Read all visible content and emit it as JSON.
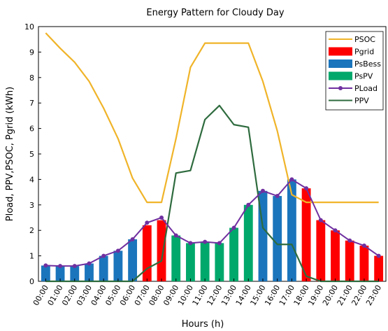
{
  "chart_data": {
    "type": "bar",
    "title": "Energy Pattern for Cloudy Day",
    "xlabel": "Hours (h)",
    "ylabel": "Pload, PPV,PSOC, Pgrid (kWh)",
    "ylim": [
      0,
      10
    ],
    "yticks": [
      "0",
      "1",
      "2",
      "3",
      "4",
      "5",
      "6",
      "7",
      "8",
      "9",
      "10"
    ],
    "grid": false,
    "legend_position": "top-right",
    "categories": [
      "00:00",
      "01:00",
      "02:00",
      "03:00",
      "04:00",
      "05:00",
      "06:00",
      "07:00",
      "08:00",
      "09:00",
      "10:00",
      "11:00",
      "12:00",
      "13:00",
      "14:00",
      "15:00",
      "16:00",
      "17:00",
      "18:00",
      "19:00",
      "20:00",
      "21:00",
      "22:00",
      "23:00"
    ],
    "series": [
      {
        "name": "PSOC",
        "kind": "line",
        "color": "#f0b429",
        "values": [
          9.75,
          9.15,
          8.6,
          7.85,
          6.8,
          5.6,
          4.05,
          3.1,
          3.1,
          5.6,
          8.4,
          9.35,
          9.35,
          9.35,
          9.35,
          7.85,
          5.9,
          3.4,
          3.1,
          3.1,
          3.1,
          3.1,
          3.1,
          3.1
        ]
      },
      {
        "name": "Pgrid",
        "kind": "bar",
        "color": "#ff0000",
        "values": [
          0,
          0,
          0,
          0,
          0,
          0,
          0,
          2.2,
          2.4,
          0,
          0,
          0,
          0,
          0,
          0,
          0,
          0,
          0,
          3.65,
          2.4,
          2.0,
          1.6,
          1.4,
          1.0
        ]
      },
      {
        "name": "PsBess",
        "kind": "bar",
        "color": "#1b75bc",
        "values": [
          0.62,
          0.6,
          0.6,
          0.7,
          1.0,
          1.2,
          1.65,
          0,
          0,
          0,
          0,
          0,
          0,
          0,
          0,
          3.55,
          3.35,
          4.0,
          0,
          0,
          0,
          0,
          0,
          0
        ]
      },
      {
        "name": "PsPV",
        "kind": "bar",
        "color": "#00a86b",
        "values": [
          0,
          0,
          0,
          0,
          0,
          0,
          0,
          0,
          0,
          1.8,
          1.5,
          1.55,
          1.5,
          2.1,
          3.0,
          0,
          0,
          0,
          0,
          0,
          0,
          0,
          0,
          0
        ]
      },
      {
        "name": "PLoad",
        "kind": "line-marker",
        "color": "#7030a0",
        "values": [
          0.62,
          0.6,
          0.6,
          0.7,
          1.0,
          1.2,
          1.65,
          2.3,
          2.5,
          1.8,
          1.5,
          1.55,
          1.5,
          2.1,
          3.0,
          3.55,
          3.35,
          4.0,
          3.65,
          2.4,
          2.0,
          1.6,
          1.4,
          1.0
        ]
      },
      {
        "name": "PPV",
        "kind": "line",
        "color": "#2e6b3e",
        "values": [
          0,
          0,
          0,
          0,
          0,
          0,
          0,
          0.5,
          0.8,
          4.25,
          4.35,
          6.35,
          6.9,
          6.15,
          6.05,
          2.1,
          1.45,
          1.45,
          0.2,
          0,
          0,
          0,
          0,
          0
        ]
      }
    ]
  }
}
